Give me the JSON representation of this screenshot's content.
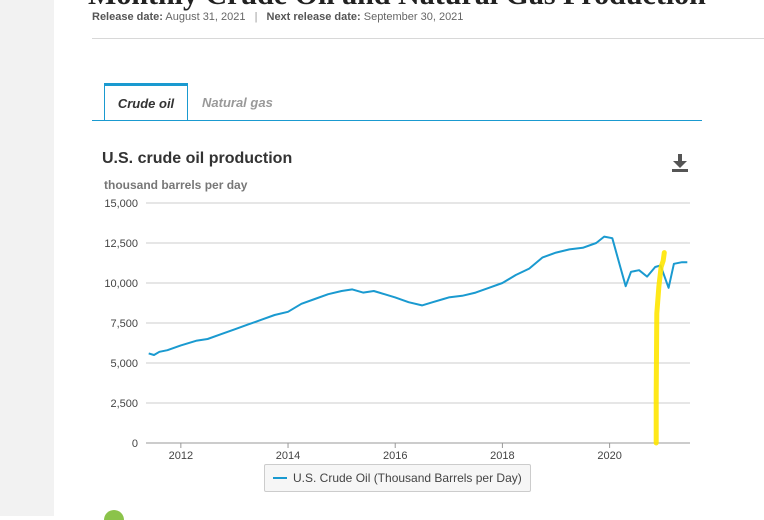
{
  "page": {
    "title": "Monthly Crude Oil and Natural Gas Production",
    "release_label": "Release date:",
    "release_date": "August 31, 2021",
    "separator": "|",
    "next_release_label": "Next release date:",
    "next_release_date": "September 30, 2021"
  },
  "tabs": [
    {
      "label": "Crude oil",
      "active": true
    },
    {
      "label": "Natural gas",
      "active": false
    }
  ],
  "download_icon": "download-icon",
  "colors": {
    "series": "#1a9ad0",
    "highlight": "#ffe600",
    "grid": "#cccccc",
    "tab_accent": "#1a9ad0"
  },
  "chart_data": {
    "type": "line",
    "title": "U.S. crude oil production",
    "ylabel": "thousand barrels per day",
    "xlabel": "",
    "ylim": [
      0,
      15000
    ],
    "xlim": [
      2011.35,
      2021.5
    ],
    "y_ticks": [
      "15,000",
      "12,500",
      "10,000",
      "7,500",
      "5,000",
      "2,500",
      "0"
    ],
    "y_tick_values": [
      15000,
      12500,
      10000,
      7500,
      5000,
      2500,
      0
    ],
    "x_ticks": [
      "2012",
      "2014",
      "2016",
      "2018",
      "2020"
    ],
    "x_tick_values": [
      2012,
      2014,
      2016,
      2018,
      2020
    ],
    "grid": true,
    "legend_position": "bottom-center",
    "series": [
      {
        "name": "U.S. Crude Oil (Thousand Barrels per Day)",
        "x": [
          2011.4,
          2011.5,
          2011.6,
          2011.75,
          2012.0,
          2012.3,
          2012.5,
          2012.75,
          2013.0,
          2013.25,
          2013.5,
          2013.75,
          2014.0,
          2014.25,
          2014.5,
          2014.75,
          2015.0,
          2015.2,
          2015.4,
          2015.6,
          2015.8,
          2016.0,
          2016.25,
          2016.5,
          2016.7,
          2016.9,
          2017.0,
          2017.25,
          2017.5,
          2017.75,
          2018.0,
          2018.25,
          2018.5,
          2018.75,
          2019.0,
          2019.25,
          2019.5,
          2019.75,
          2019.9,
          2020.05,
          2020.2,
          2020.3,
          2020.4,
          2020.55,
          2020.7,
          2020.85,
          2020.95,
          2021.1,
          2021.2,
          2021.35,
          2021.45
        ],
        "values": [
          5600,
          5500,
          5700,
          5800,
          6100,
          6400,
          6500,
          6800,
          7100,
          7400,
          7700,
          8000,
          8200,
          8700,
          9000,
          9300,
          9500,
          9600,
          9400,
          9500,
          9300,
          9100,
          8800,
          8600,
          8800,
          9000,
          9100,
          9200,
          9400,
          9700,
          10000,
          10500,
          10900,
          11600,
          11900,
          12100,
          12200,
          12500,
          12900,
          12800,
          11000,
          9800,
          10700,
          10800,
          10400,
          11000,
          11100,
          9700,
          11200,
          11300,
          11300
        ]
      }
    ],
    "highlight_annotation": {
      "description": "hand-drawn yellow vertical stroke",
      "x": [
        2020.87,
        2020.87,
        2020.88,
        2020.92,
        2020.96,
        2021.0,
        2021.02
      ],
      "values": [
        0,
        3000,
        8100,
        9800,
        11000,
        11400,
        11900
      ]
    }
  }
}
